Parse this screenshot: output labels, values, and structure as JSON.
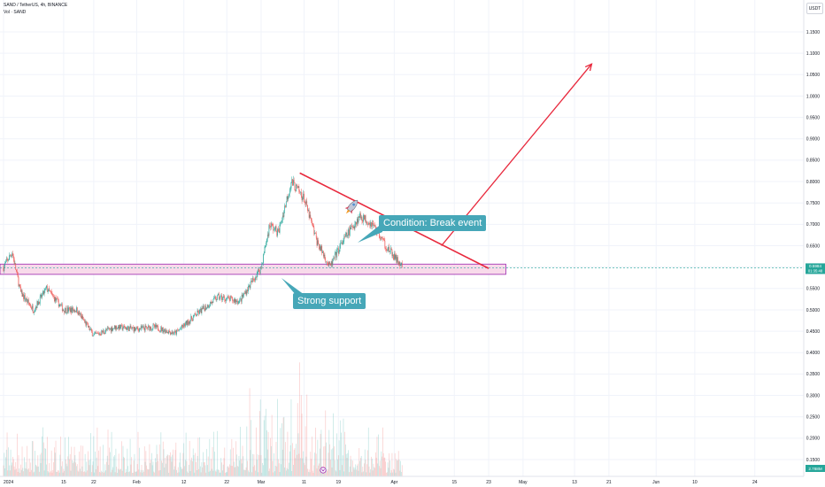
{
  "header": {
    "title": "SAND / TetherUS, 4h, BINANCE",
    "volume_label": "Vol · SAND",
    "currency": "USDT"
  },
  "price_badge": {
    "price": "0.5984",
    "countdown": "01:35:48"
  },
  "volume_badge": {
    "value": "2.788M"
  },
  "annotations": {
    "break_label": "Condition: Break event",
    "support_label": "Strong support"
  },
  "colors": {
    "up": "#26a69a",
    "down": "#ef5350",
    "trend_line": "#e8283c",
    "support_fill": "#f7d4e6",
    "support_border": "#9c27b0",
    "callout": "#46a7b8"
  },
  "chart_data": {
    "type": "candlestick",
    "ylim": [
      0.105,
      1.22
    ],
    "y_ticks": [
      0.15,
      0.2,
      0.25,
      0.3,
      0.35,
      0.4,
      0.45,
      0.5,
      0.55,
      0.6,
      0.65,
      0.7,
      0.75,
      0.8,
      0.85,
      0.9,
      0.95,
      1.0,
      1.05,
      1.1,
      1.15
    ],
    "x_ticks": [
      "2024",
      "15",
      "22",
      "Feb",
      "12",
      "22",
      "Mar",
      "11",
      "19",
      "Apr",
      "15",
      "23",
      "May",
      "13",
      "21",
      "Jun",
      "10",
      "24"
    ],
    "x_tick_dates": [
      "2024-01-01",
      "2024-01-15",
      "2024-01-22",
      "2024-02-01",
      "2024-02-12",
      "2024-02-22",
      "2024-03-01",
      "2024-03-11",
      "2024-03-19",
      "2024-04-01",
      "2024-04-15",
      "2024-04-23",
      "2024-05-01",
      "2024-05-13",
      "2024-05-21",
      "2024-06-01",
      "2024-06-10",
      "2024-06-24"
    ],
    "price_path": [
      [
        "2024-01-01",
        0.6
      ],
      [
        "2024-01-03",
        0.635
      ],
      [
        "2024-01-05",
        0.54
      ],
      [
        "2024-01-08",
        0.5
      ],
      [
        "2024-01-11",
        0.55
      ],
      [
        "2024-01-15",
        0.5
      ],
      [
        "2024-01-18",
        0.5
      ],
      [
        "2024-01-22",
        0.44
      ],
      [
        "2024-01-27",
        0.46
      ],
      [
        "2024-02-01",
        0.455
      ],
      [
        "2024-02-05",
        0.46
      ],
      [
        "2024-02-10",
        0.445
      ],
      [
        "2024-02-15",
        0.49
      ],
      [
        "2024-02-20",
        0.53
      ],
      [
        "2024-02-25",
        0.52
      ],
      [
        "2024-03-01",
        0.6
      ],
      [
        "2024-03-03",
        0.7
      ],
      [
        "2024-03-05",
        0.68
      ],
      [
        "2024-03-08",
        0.8
      ],
      [
        "2024-03-11",
        0.76
      ],
      [
        "2024-03-14",
        0.66
      ],
      [
        "2024-03-17",
        0.6
      ],
      [
        "2024-03-20",
        0.66
      ],
      [
        "2024-03-24",
        0.72
      ],
      [
        "2024-03-27",
        0.7
      ],
      [
        "2024-03-30",
        0.65
      ],
      [
        "2024-04-03",
        0.598
      ]
    ],
    "current_price": 0.5984,
    "support_zone": {
      "x": [
        "2024-01-01",
        "2024-04-27"
      ],
      "y": [
        0.583,
        0.607
      ]
    },
    "resistance_line": [
      [
        "2024-03-10",
        0.82
      ],
      [
        "2024-04-23",
        0.597
      ]
    ],
    "projection_arrow": [
      [
        "2024-04-12",
        0.65
      ],
      [
        "2024-05-17",
        1.075
      ]
    ],
    "volume": {
      "max_volume": "about 8x the 2.788M current bar"
    }
  }
}
